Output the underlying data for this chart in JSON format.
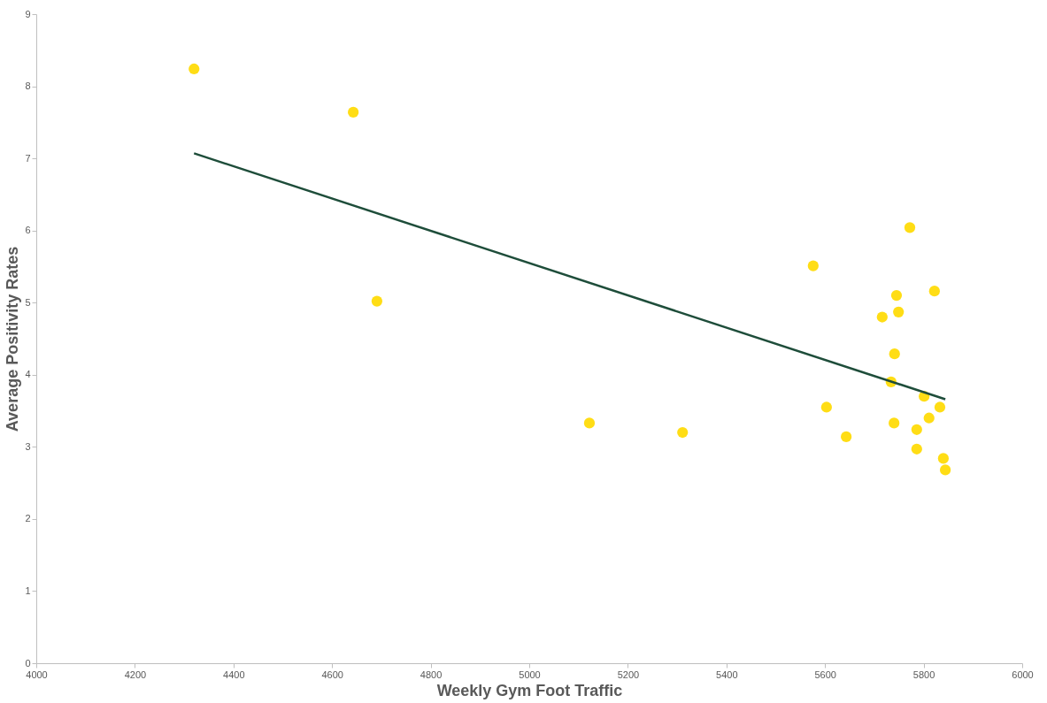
{
  "chart_data": {
    "type": "scatter",
    "xlabel": "Weekly Gym Foot Traffic",
    "ylabel": "Average Positivity Rates",
    "xlim": [
      4000,
      6000
    ],
    "xticks": [
      4000,
      4200,
      4400,
      4600,
      4800,
      5000,
      5200,
      5400,
      5600,
      5800,
      6000
    ],
    "ylim": [
      0,
      9
    ],
    "yticks": [
      0,
      1,
      2,
      3,
      4,
      5,
      6,
      7,
      8,
      9
    ],
    "grid": false,
    "series": [
      {
        "color": "#ffdd15",
        "marker": "circle",
        "x": [
          4320,
          4643,
          4691,
          5122,
          5311,
          5576,
          5603,
          5643,
          5716,
          5734,
          5740,
          5741,
          5745,
          5749,
          5772,
          5786,
          5786,
          5801,
          5811,
          5822,
          5833,
          5840,
          5844
        ],
        "values": [
          8.24,
          7.64,
          5.02,
          3.33,
          3.2,
          5.51,
          3.55,
          3.14,
          4.8,
          3.9,
          3.33,
          4.29,
          5.1,
          4.87,
          6.04,
          3.24,
          2.97,
          3.7,
          3.4,
          5.16,
          3.55,
          2.84,
          2.68
        ]
      },
      {
        "type": "line",
        "color": "#1e4d3a",
        "line_style": "solid",
        "marker": "none",
        "x": [
          4320,
          5844
        ],
        "values": [
          7.07,
          3.66
        ]
      }
    ]
  }
}
